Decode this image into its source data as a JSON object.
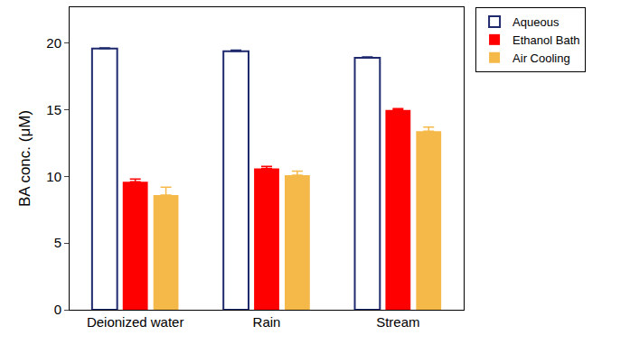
{
  "chart_data": {
    "type": "bar",
    "y_label": "BA conc. (μM)",
    "categories": [
      "Deionized water",
      "Rain",
      "Stream"
    ],
    "series": [
      {
        "name": "Aqueous",
        "color": "#1f2a6e",
        "marker": "open",
        "values": [
          19.6,
          19.4,
          18.9
        ],
        "errors": [
          0.05,
          0.08,
          0.08
        ]
      },
      {
        "name": "Ethanol Bath",
        "color": "#ff0000",
        "values": [
          9.6,
          10.6,
          15.0
        ],
        "errors": [
          0.2,
          0.15,
          0.1
        ]
      },
      {
        "name": "Air Cooling",
        "color": "#f5b94a",
        "values": [
          8.6,
          10.1,
          13.4
        ],
        "errors": [
          0.6,
          0.3,
          0.3
        ]
      }
    ],
    "ylim": [
      0,
      22.7
    ],
    "yticks": [
      0,
      5,
      10,
      15,
      20
    ],
    "grid": false,
    "legend": "outside right top"
  }
}
